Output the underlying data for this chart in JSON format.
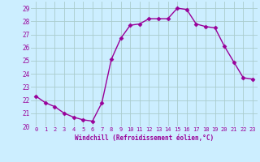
{
  "hours": [
    0,
    1,
    2,
    3,
    4,
    5,
    6,
    7,
    8,
    9,
    10,
    11,
    12,
    13,
    14,
    15,
    16,
    17,
    18,
    19,
    20,
    21,
    22,
    23
  ],
  "values": [
    22.3,
    21.8,
    21.5,
    21.0,
    20.7,
    20.5,
    20.4,
    21.8,
    25.1,
    26.7,
    27.7,
    27.8,
    28.2,
    28.2,
    28.2,
    29.0,
    28.9,
    27.8,
    27.6,
    27.5,
    26.1,
    24.9,
    23.7,
    23.6
  ],
  "line_color": "#990099",
  "marker": "D",
  "marker_size": 2.5,
  "bg_color": "#cceeff",
  "grid_color": "#aacccc",
  "xlabel": "Windchill (Refroidissement éolien,°C)",
  "xlabel_color": "#990099",
  "tick_color": "#990099",
  "ylim": [
    20,
    29.5
  ],
  "yticks": [
    20,
    21,
    22,
    23,
    24,
    25,
    26,
    27,
    28,
    29
  ],
  "xlim": [
    -0.5,
    23.5
  ],
  "line_width": 1.0
}
